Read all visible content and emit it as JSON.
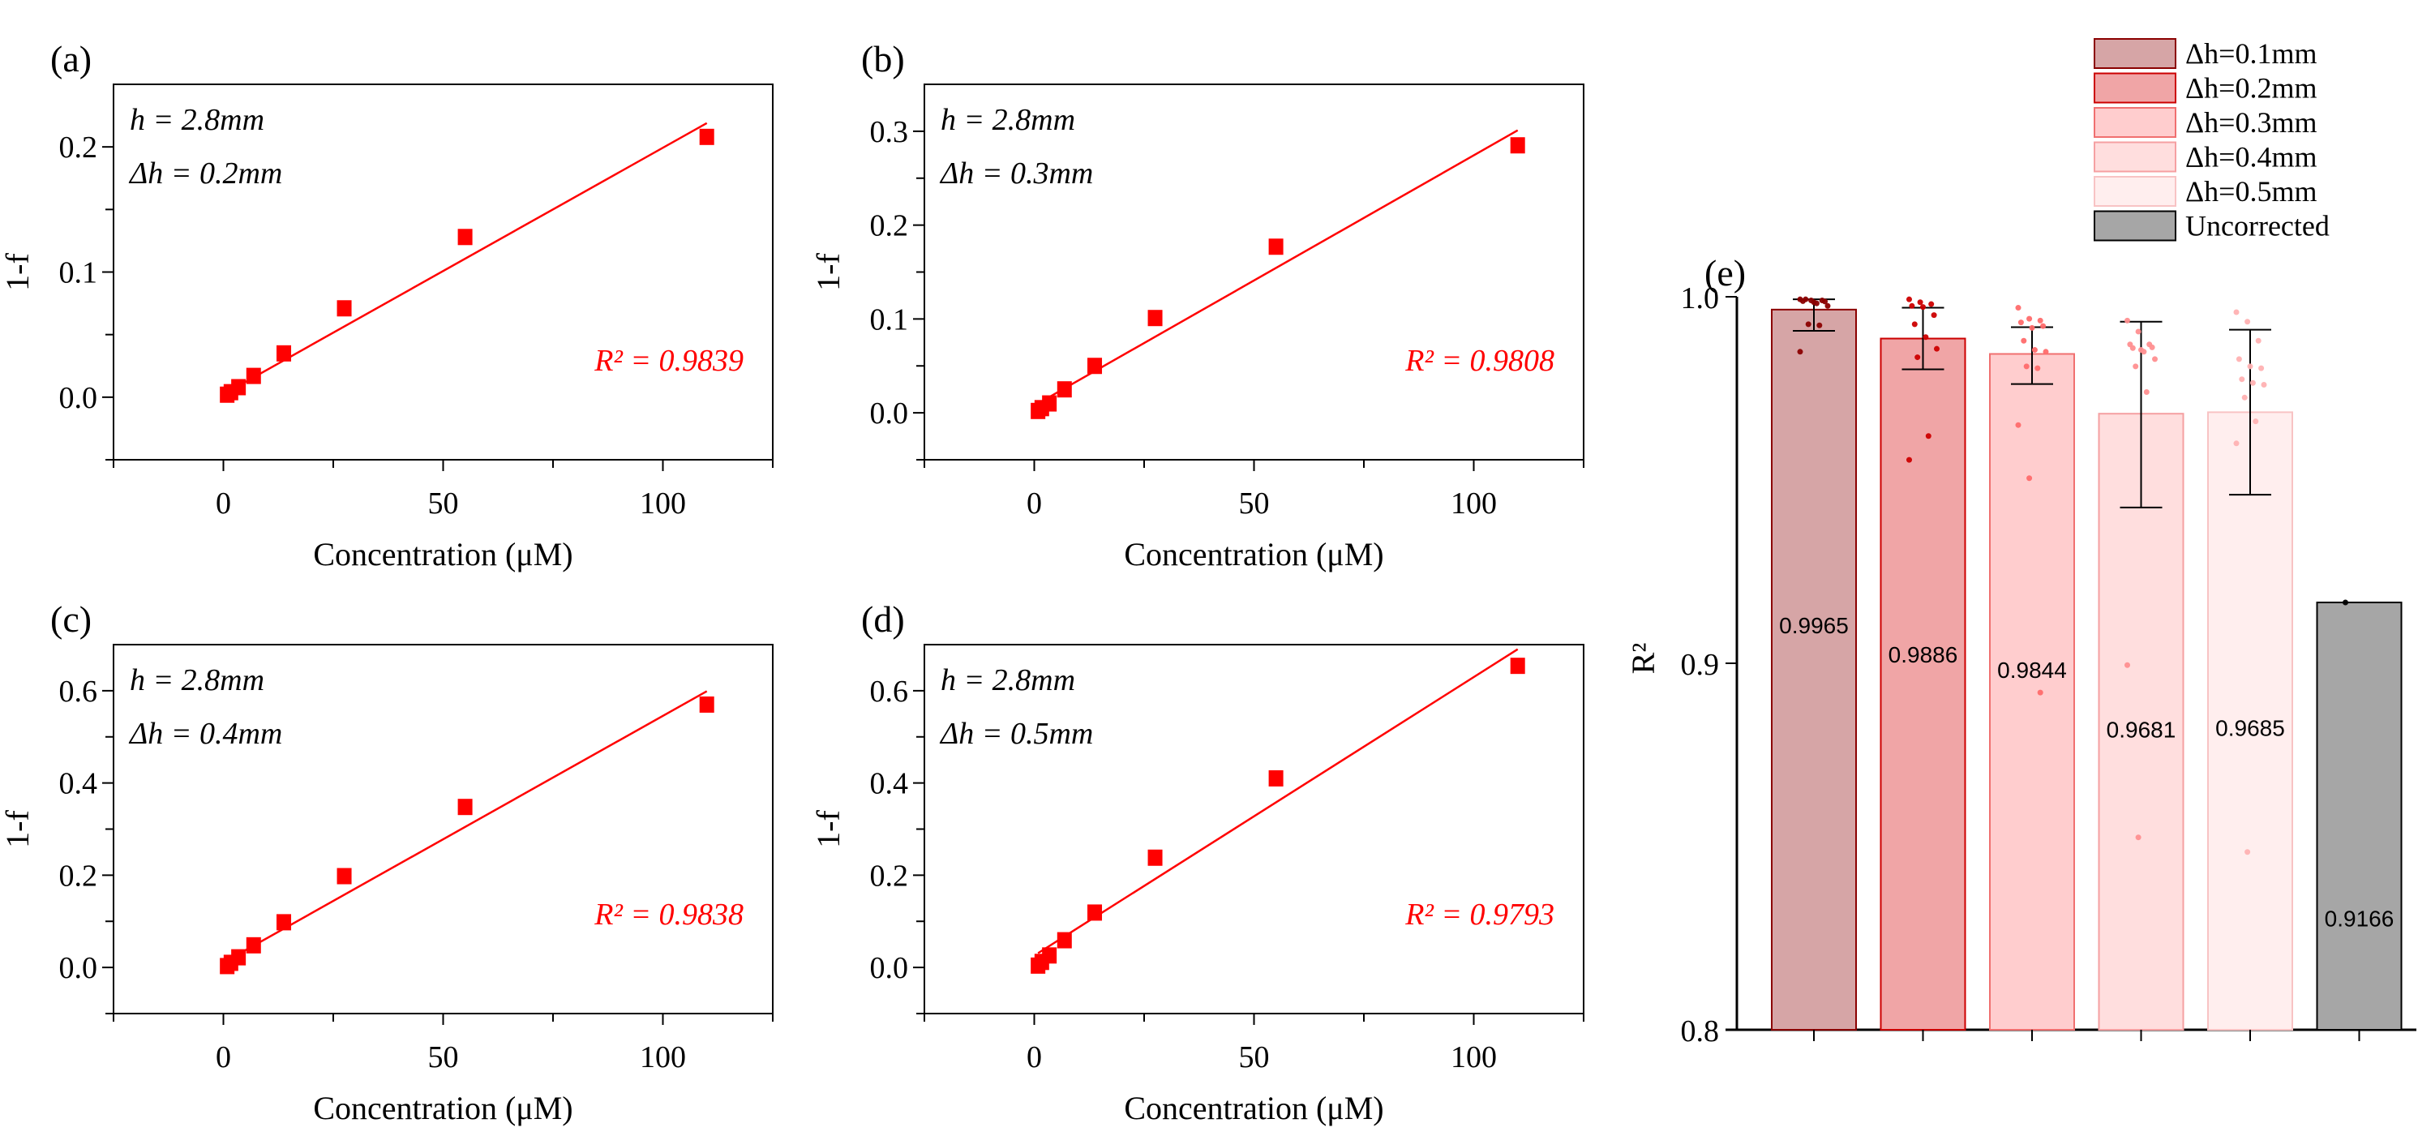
{
  "figure": {
    "colors": {
      "scatter": "#ff0000",
      "fit_line": "#ff0000",
      "r2_text": "#ff0000",
      "axis": "#000000"
    }
  },
  "chart_data": [
    {
      "id": "a",
      "type": "scatter",
      "panel_label": "(a)",
      "xlabel": "Concentration (μM)",
      "ylabel": "1-f",
      "xlim": [
        -25,
        125
      ],
      "ylim": [
        -0.05,
        0.25
      ],
      "xticks": [
        0,
        50,
        100
      ],
      "xtick_labels": [
        "0",
        "50",
        "100"
      ],
      "yticks": [
        0.0,
        0.1,
        0.2
      ],
      "ytick_labels": [
        "0.0",
        "0.1",
        "0.2"
      ],
      "annotation_h": "h = 2.8mm",
      "annotation_dh": "Δh = 0.2mm",
      "r2_label": "R² = 0.9839",
      "x": [
        0.86,
        1.72,
        3.44,
        6.88,
        13.75,
        27.5,
        55,
        110
      ],
      "y": [
        0.002,
        0.004,
        0.008,
        0.017,
        0.035,
        0.071,
        0.128,
        0.208
      ],
      "fit": {
        "x0": 0.86,
        "y0": 0.004,
        "x1": 110,
        "y1": 0.219
      }
    },
    {
      "id": "b",
      "type": "scatter",
      "panel_label": "(b)",
      "xlabel": "Concentration (μM)",
      "ylabel": "1-f",
      "xlim": [
        -25,
        125
      ],
      "ylim": [
        -0.05,
        0.35
      ],
      "xticks": [
        0,
        50,
        100
      ],
      "xtick_labels": [
        "0",
        "50",
        "100"
      ],
      "yticks": [
        0.0,
        0.1,
        0.2,
        0.3
      ],
      "ytick_labels": [
        "0.0",
        "0.1",
        "0.2",
        "0.3"
      ],
      "annotation_h": "h = 2.8mm",
      "annotation_dh": "Δh = 0.3mm",
      "r2_label": "R² = 0.9808",
      "x": [
        0.86,
        1.72,
        3.44,
        6.88,
        13.75,
        27.5,
        55,
        110
      ],
      "y": [
        0.002,
        0.005,
        0.01,
        0.025,
        0.05,
        0.101,
        0.177,
        0.285
      ],
      "fit": {
        "x0": 0.86,
        "y0": 0.01,
        "x1": 110,
        "y1": 0.301
      }
    },
    {
      "id": "c",
      "type": "scatter",
      "panel_label": "(c)",
      "xlabel": "Concentration (μM)",
      "ylabel": "1-f",
      "xlim": [
        -25,
        125
      ],
      "ylim": [
        -0.1,
        0.7
      ],
      "xticks": [
        0,
        50,
        100
      ],
      "xtick_labels": [
        "0",
        "50",
        "100"
      ],
      "yticks": [
        0.0,
        0.2,
        0.4,
        0.6
      ],
      "ytick_labels": [
        "0.0",
        "0.2",
        "0.4",
        "0.6"
      ],
      "annotation_h": "h = 2.8mm",
      "annotation_dh": "Δh = 0.4mm",
      "r2_label": "R² = 0.9838",
      "x": [
        0.86,
        1.72,
        3.44,
        6.88,
        13.75,
        27.5,
        55,
        110
      ],
      "y": [
        0.003,
        0.01,
        0.022,
        0.048,
        0.098,
        0.198,
        0.348,
        0.57
      ],
      "fit": {
        "x0": 0.86,
        "y0": 0.015,
        "x1": 110,
        "y1": 0.599
      }
    },
    {
      "id": "d",
      "type": "scatter",
      "panel_label": "(d)",
      "xlabel": "Concentration (μM)",
      "ylabel": "1-f",
      "xlim": [
        -25,
        125
      ],
      "ylim": [
        -0.1,
        0.7
      ],
      "xticks": [
        0,
        50,
        100
      ],
      "xtick_labels": [
        "0",
        "50",
        "100"
      ],
      "yticks": [
        0.0,
        0.2,
        0.4,
        0.6
      ],
      "ytick_labels": [
        "0.0",
        "0.2",
        "0.4",
        "0.6"
      ],
      "annotation_h": "h = 2.8mm",
      "annotation_dh": "Δh = 0.5mm",
      "r2_label": "R² = 0.9793",
      "x": [
        0.86,
        1.72,
        3.44,
        6.88,
        13.75,
        27.5,
        55,
        110
      ],
      "y": [
        0.004,
        0.012,
        0.026,
        0.059,
        0.119,
        0.238,
        0.41,
        0.654
      ],
      "fit": {
        "x0": 0.86,
        "y0": 0.031,
        "x1": 110,
        "y1": 0.69
      }
    },
    {
      "id": "e",
      "type": "bar",
      "panel_label": "(e)",
      "xlabel": "",
      "ylabel": "R²",
      "ylim": [
        0.8,
        1.0
      ],
      "yticks": [
        0.8,
        0.9,
        1.0
      ],
      "ytick_labels": [
        "0.8",
        "0.9",
        "1.0"
      ],
      "legend_position": "top-right",
      "series": [
        {
          "name": "Δh=0.1mm",
          "value": 0.9965,
          "value_label": "0.9965",
          "err_low": 0.9907,
          "err_high": 0.9993,
          "fill": "#d6a5a6",
          "edge": "#8b0000",
          "dot": "#8b0000",
          "points": [
            0.9993,
            0.999,
            0.999,
            0.9988,
            0.9985,
            0.9987,
            0.9993,
            0.9982,
            0.9975,
            0.9925,
            0.9922,
            0.985
          ]
        },
        {
          "name": "Δh=0.2mm",
          "value": 0.9886,
          "value_label": "0.9886",
          "err_low": 0.9802,
          "err_high": 0.997,
          "fill": "#f0a5a6",
          "edge": "#cc0000",
          "dot": "#cc0000",
          "points": [
            0.9993,
            0.9985,
            0.998,
            0.9975,
            0.9972,
            0.995,
            0.9925,
            0.989,
            0.9858,
            0.9835,
            0.962,
            0.9555
          ]
        },
        {
          "name": "Δh=0.3mm",
          "value": 0.9844,
          "value_label": "0.9844",
          "err_low": 0.9762,
          "err_high": 0.9917,
          "fill": "#ffcdce",
          "edge": "#f07070",
          "dot": "#ff6b6b",
          "points": [
            0.997,
            0.994,
            0.9935,
            0.993,
            0.9915,
            0.992,
            0.988,
            0.9855,
            0.985,
            0.981,
            0.9805,
            0.965,
            0.9505,
            0.892
          ]
        },
        {
          "name": "Δh=0.4mm",
          "value": 0.9681,
          "value_label": "0.9681",
          "err_low": 0.9425,
          "err_high": 0.9932,
          "fill": "#ffdede",
          "edge": "#f5a0a2",
          "dot": "#ff8f90",
          "points": [
            0.9935,
            0.9905,
            0.987,
            0.987,
            0.9855,
            0.9862,
            0.986,
            0.985,
            0.983,
            0.981,
            0.974,
            0.8995,
            0.8525
          ]
        },
        {
          "name": "Δh=0.5mm",
          "value": 0.9685,
          "value_label": "0.9685",
          "err_low": 0.946,
          "err_high": 0.991,
          "fill": "#ffeeee",
          "edge": "#f8c3c4",
          "dot": "#ffb1b2",
          "points": [
            0.9958,
            0.9932,
            0.988,
            0.983,
            0.981,
            0.9805,
            0.9775,
            0.9765,
            0.976,
            0.9725,
            0.966,
            0.96,
            0.8485
          ]
        },
        {
          "name": "Uncorrected",
          "value": 0.9166,
          "value_label": "0.9166",
          "err_low": null,
          "err_high": null,
          "fill": "#a6a6a6",
          "edge": "#000000",
          "dot": "#000000",
          "points": [
            0.9166
          ]
        }
      ]
    }
  ]
}
